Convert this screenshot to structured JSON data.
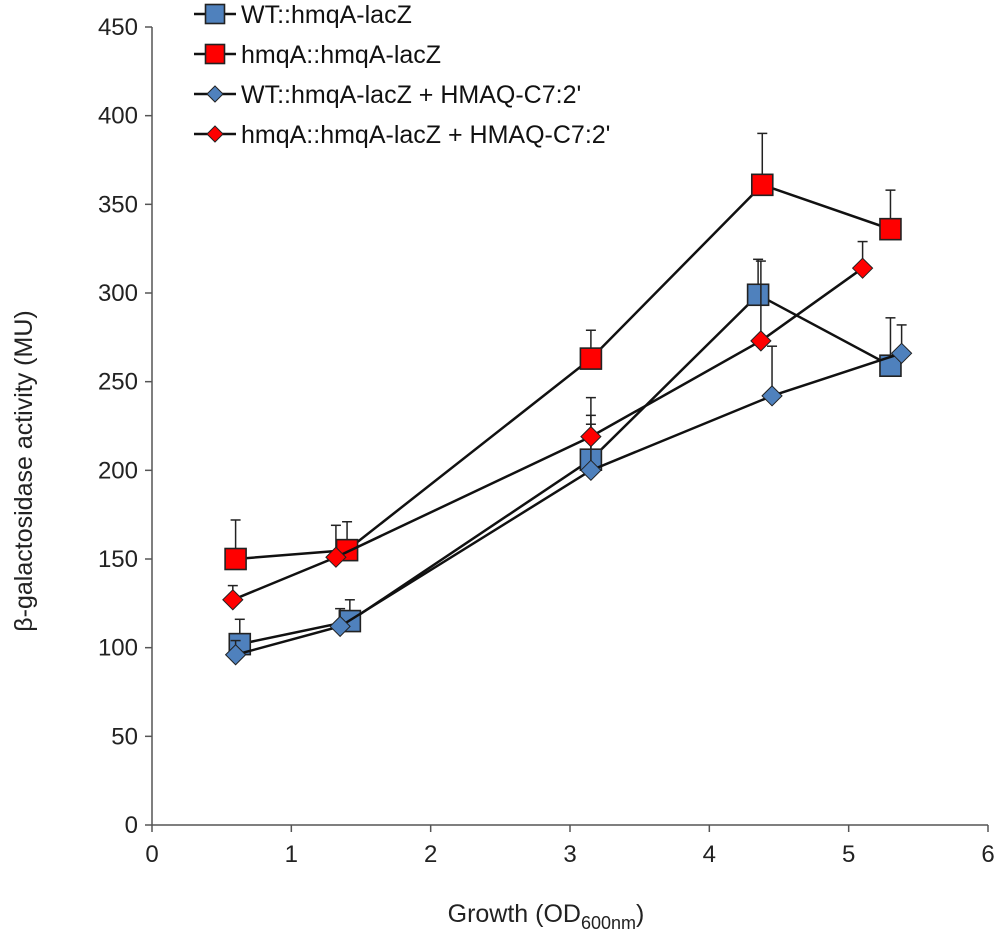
{
  "chart_data": {
    "type": "scatter",
    "title": "",
    "xlabel": "Growth (OD",
    "xlabel_sub": "600nm",
    "xlabel_close": ")",
    "ylabel": "β-galactosidase activity (MU)",
    "xlim": [
      0,
      6
    ],
    "ylim": [
      0,
      450
    ],
    "xticks": [
      0,
      1,
      2,
      3,
      4,
      5,
      6
    ],
    "yticks": [
      0,
      50,
      100,
      150,
      200,
      250,
      300,
      350,
      400,
      450
    ],
    "grid": false,
    "legend_position": "top-left",
    "series": [
      {
        "name": "WT::hmqA-lacZ",
        "marker": "square",
        "color": "#4F81BD",
        "x": [
          0.63,
          1.42,
          3.15,
          4.35,
          5.3
        ],
        "y": [
          102,
          115,
          206,
          299,
          259
        ],
        "err": [
          14,
          12,
          20,
          20,
          27
        ]
      },
      {
        "name": "hmqA::hmqA-lacZ",
        "marker": "square",
        "color": "#FF0000",
        "x": [
          0.6,
          1.4,
          3.15,
          4.38,
          5.3
        ],
        "y": [
          150,
          155,
          263,
          361,
          336
        ],
        "err": [
          22,
          16,
          16,
          29,
          22
        ]
      },
      {
        "name": "WT::hmqA-lacZ + HMAQ-C7:2'",
        "marker": "diamond",
        "color": "#4F81BD",
        "x": [
          0.6,
          1.35,
          3.15,
          4.45,
          5.38
        ],
        "y": [
          96,
          112,
          200,
          242,
          266
        ],
        "err": [
          8,
          10,
          31,
          28,
          16
        ]
      },
      {
        "name": "hmqA::hmqA-lacZ + HMAQ-C7:2'",
        "marker": "diamond",
        "color": "#FF0000",
        "x": [
          0.58,
          1.32,
          3.15,
          4.37,
          5.1
        ],
        "y": [
          127,
          151,
          219,
          273,
          314
        ],
        "err": [
          8,
          18,
          22,
          45,
          15
        ]
      }
    ]
  }
}
